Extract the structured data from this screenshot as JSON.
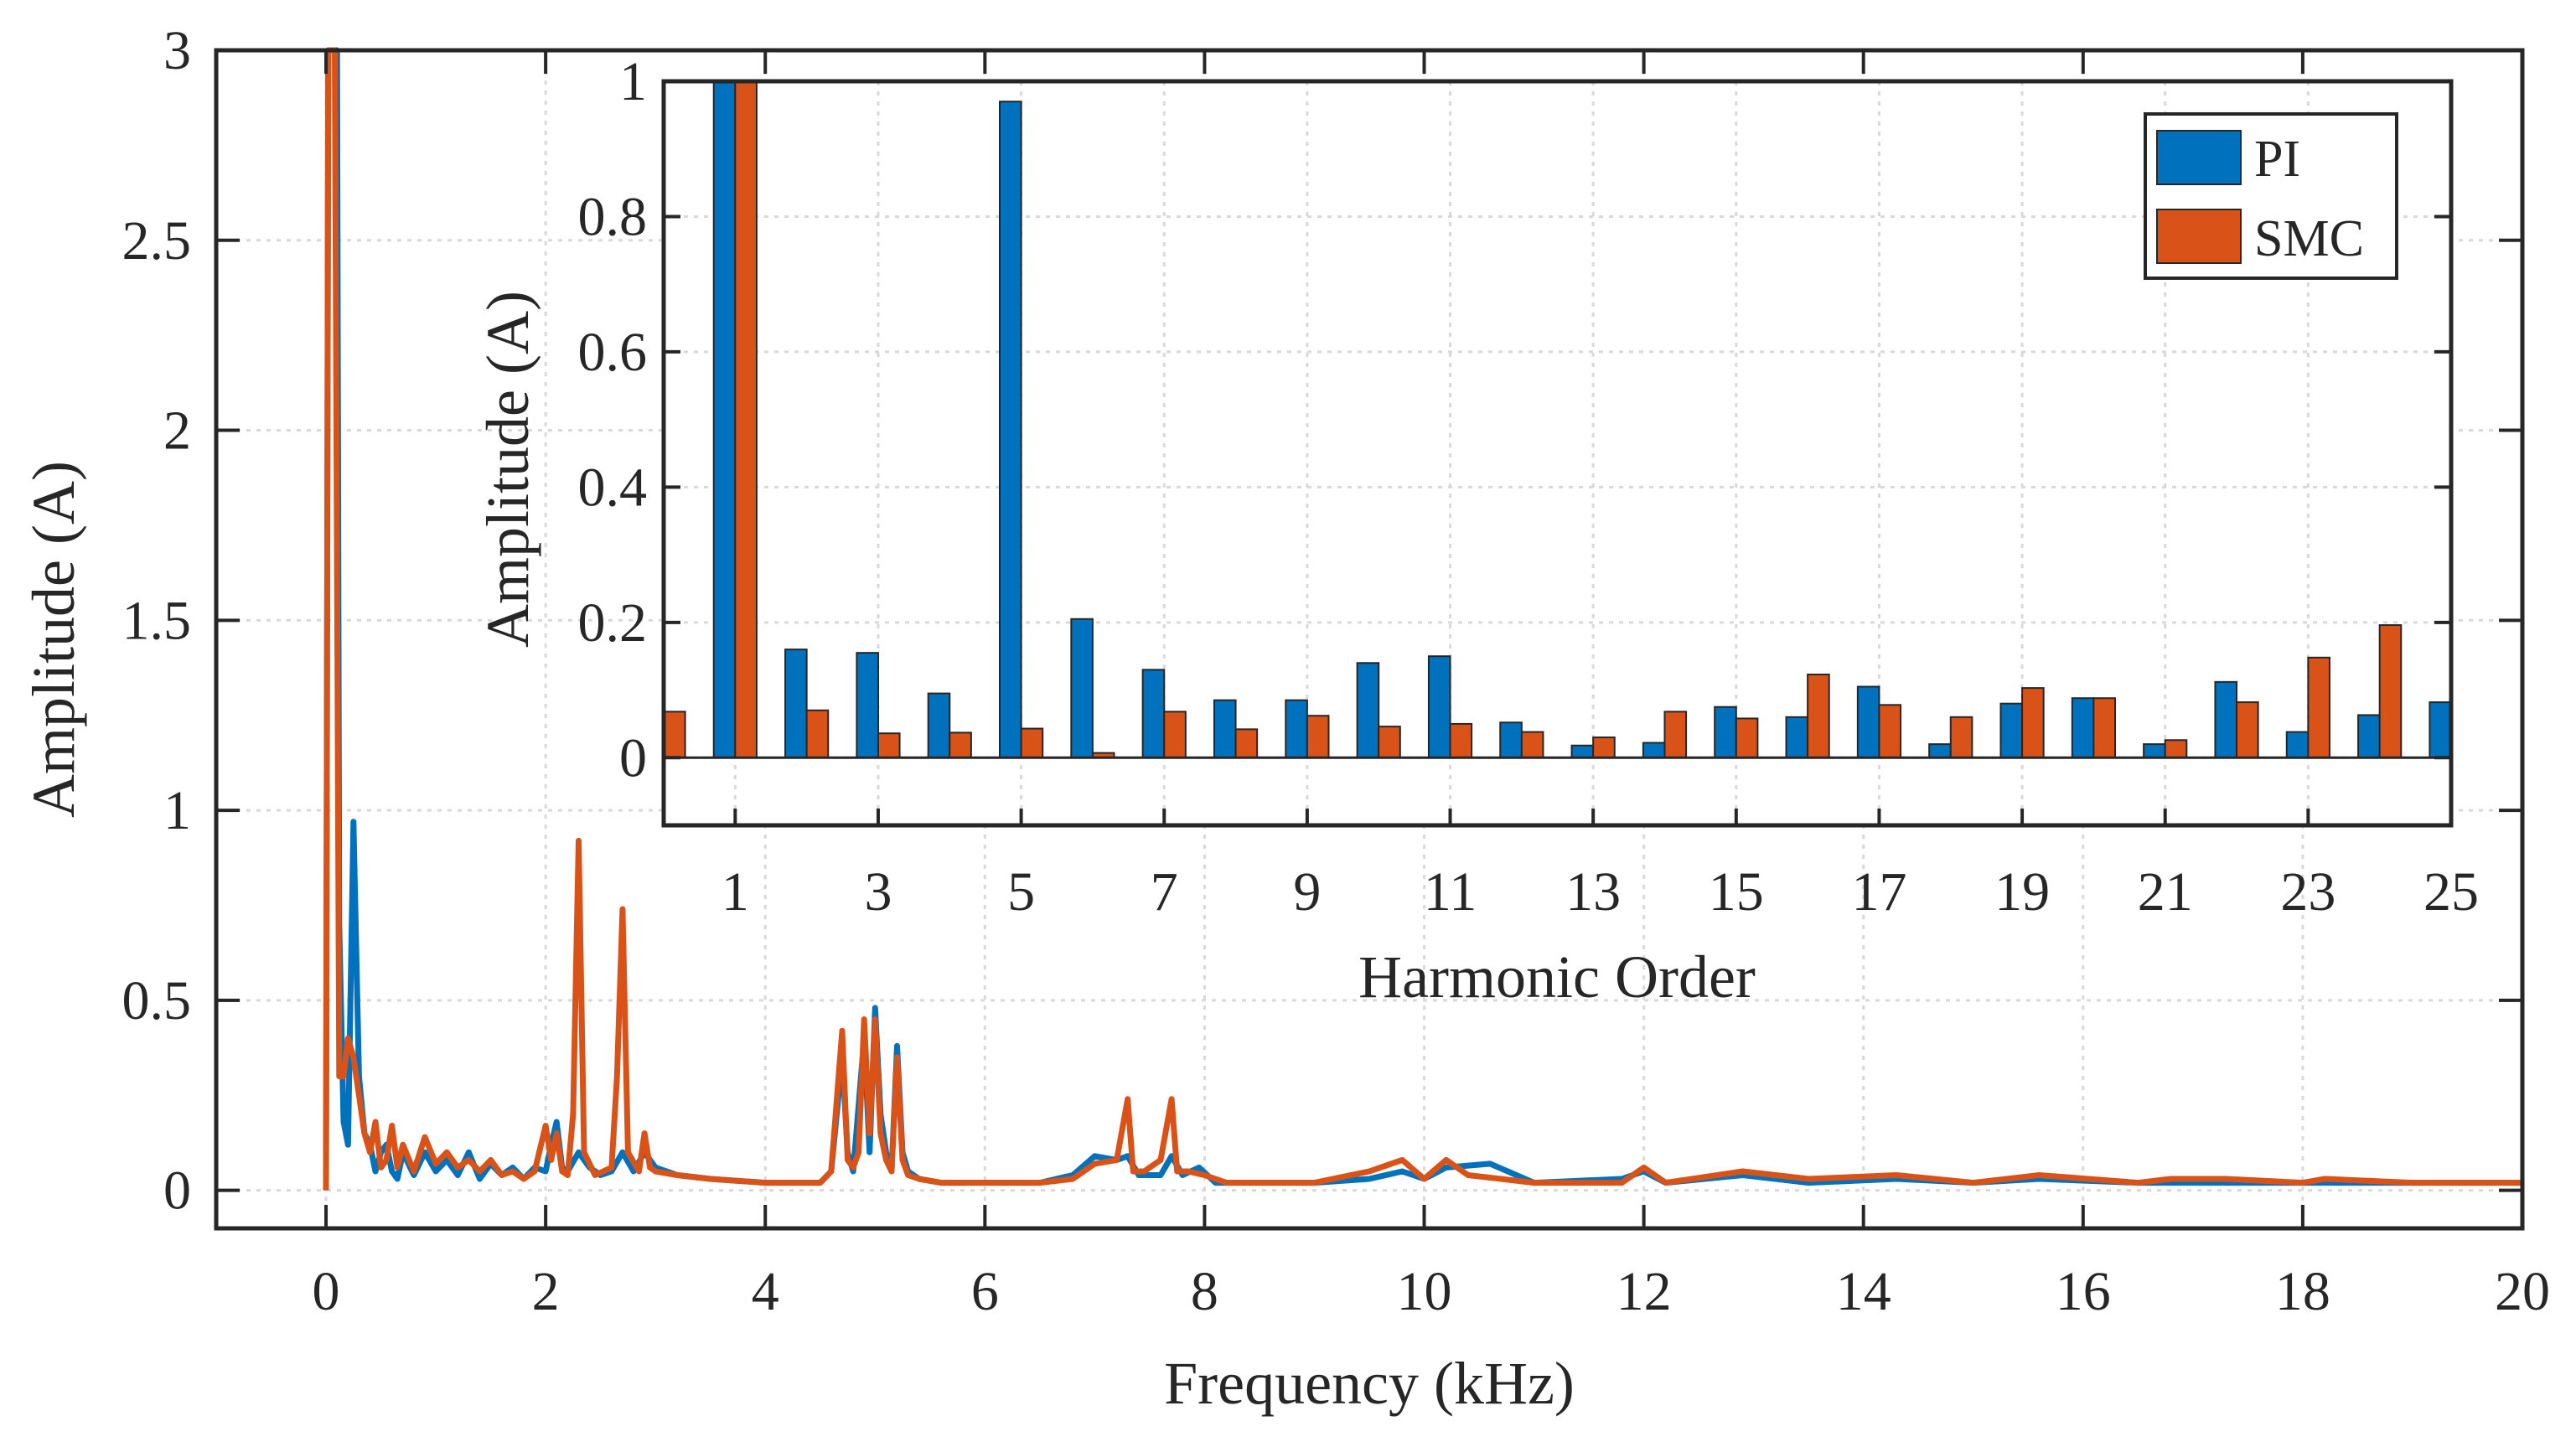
{
  "colors": {
    "pi": "#0072BD",
    "smc": "#D95319",
    "axis": "#262626",
    "grid": "#d9d9d9"
  },
  "chart_data": [
    {
      "id": "main",
      "type": "line",
      "title": "",
      "xlabel": "Frequency (kHz)",
      "ylabel": "Amplitude (A)",
      "xlim": [
        -1,
        20
      ],
      "ylim": [
        -0.1,
        3
      ],
      "xticks": [
        0,
        2,
        4,
        6,
        8,
        10,
        12,
        14,
        16,
        18,
        20
      ],
      "yticks": [
        0,
        0.5,
        1,
        1.5,
        2,
        2.5,
        3
      ],
      "xtick_labels": [
        "0",
        "2",
        "4",
        "6",
        "8",
        "10",
        "12",
        "14",
        "16",
        "18",
        "20"
      ],
      "ytick_labels": [
        "0",
        "0.5",
        "1",
        "1.5",
        "2",
        "2.5",
        "3"
      ],
      "grid": true,
      "series": [
        {
          "name": "PI",
          "x": [
            0,
            0.02,
            0.05,
            0.08,
            0.1,
            0.12,
            0.16,
            0.2,
            0.25,
            0.3,
            0.35,
            0.4,
            0.45,
            0.5,
            0.55,
            0.6,
            0.65,
            0.7,
            0.8,
            0.9,
            1.0,
            1.1,
            1.2,
            1.3,
            1.4,
            1.5,
            1.6,
            1.7,
            1.8,
            1.9,
            2.0,
            2.05,
            2.1,
            2.15,
            2.2,
            2.3,
            2.4,
            2.5,
            2.6,
            2.7,
            2.8,
            2.9,
            3.0,
            3.2,
            3.5,
            4.0,
            4.5,
            4.6,
            4.7,
            4.75,
            4.8,
            4.9,
            4.95,
            5.0,
            5.05,
            5.1,
            5.15,
            5.2,
            5.25,
            5.3,
            5.4,
            5.6,
            6.0,
            6.5,
            6.8,
            7.0,
            7.2,
            7.3,
            7.4,
            7.6,
            7.7,
            7.8,
            7.95,
            8.1,
            9.0,
            9.5,
            9.8,
            10.0,
            10.2,
            10.6,
            11.0,
            11.8,
            12.0,
            12.2,
            12.9,
            13.5,
            14.3,
            15.0,
            15.6,
            16.5,
            17.0,
            17.3,
            18.0,
            19.0,
            20.0
          ],
          "y": [
            0,
            3.0,
            3.0,
            3.0,
            3.0,
            0.7,
            0.18,
            0.12,
            0.97,
            0.3,
            0.15,
            0.12,
            0.05,
            0.1,
            0.12,
            0.05,
            0.03,
            0.1,
            0.04,
            0.1,
            0.05,
            0.08,
            0.04,
            0.1,
            0.03,
            0.07,
            0.04,
            0.06,
            0.03,
            0.06,
            0.05,
            0.12,
            0.18,
            0.06,
            0.05,
            0.1,
            0.06,
            0.04,
            0.05,
            0.1,
            0.05,
            0.1,
            0.06,
            0.04,
            0.03,
            0.02,
            0.02,
            0.05,
            0.35,
            0.1,
            0.05,
            0.4,
            0.1,
            0.48,
            0.2,
            0.1,
            0.05,
            0.38,
            0.1,
            0.05,
            0.03,
            0.02,
            0.02,
            0.02,
            0.04,
            0.09,
            0.08,
            0.09,
            0.04,
            0.04,
            0.09,
            0.04,
            0.06,
            0.02,
            0.02,
            0.03,
            0.05,
            0.03,
            0.06,
            0.07,
            0.02,
            0.03,
            0.05,
            0.02,
            0.04,
            0.02,
            0.03,
            0.02,
            0.03,
            0.02,
            0.02,
            0.02,
            0.02,
            0.02,
            0.02
          ]
        },
        {
          "name": "SMC",
          "x": [
            0,
            0.02,
            0.05,
            0.08,
            0.12,
            0.16,
            0.2,
            0.25,
            0.3,
            0.35,
            0.4,
            0.45,
            0.5,
            0.55,
            0.6,
            0.65,
            0.7,
            0.8,
            0.9,
            1.0,
            1.1,
            1.2,
            1.3,
            1.4,
            1.5,
            1.6,
            1.7,
            1.8,
            1.9,
            2.0,
            2.05,
            2.1,
            2.15,
            2.2,
            2.25,
            2.3,
            2.35,
            2.45,
            2.6,
            2.65,
            2.7,
            2.75,
            2.85,
            2.9,
            2.95,
            3.0,
            3.2,
            3.5,
            4.0,
            4.5,
            4.6,
            4.7,
            4.75,
            4.8,
            4.85,
            4.9,
            4.95,
            5.0,
            5.05,
            5.1,
            5.15,
            5.2,
            5.25,
            5.3,
            5.4,
            5.6,
            6.0,
            6.5,
            6.8,
            7.0,
            7.2,
            7.3,
            7.35,
            7.45,
            7.6,
            7.7,
            7.75,
            7.85,
            8.0,
            8.2,
            9.0,
            9.5,
            9.8,
            10.0,
            10.2,
            10.4,
            11.0,
            11.8,
            12.0,
            12.2,
            12.9,
            13.5,
            14.3,
            15.0,
            15.6,
            16.5,
            16.8,
            17.3,
            18.0,
            18.2,
            19.0,
            20.0
          ],
          "y": [
            0,
            3.0,
            3.0,
            3.0,
            0.3,
            0.3,
            0.4,
            0.35,
            0.25,
            0.15,
            0.1,
            0.18,
            0.06,
            0.08,
            0.17,
            0.06,
            0.12,
            0.05,
            0.14,
            0.07,
            0.1,
            0.06,
            0.08,
            0.05,
            0.08,
            0.04,
            0.05,
            0.03,
            0.05,
            0.17,
            0.08,
            0.15,
            0.05,
            0.04,
            0.2,
            0.92,
            0.1,
            0.04,
            0.06,
            0.3,
            0.74,
            0.1,
            0.05,
            0.15,
            0.06,
            0.05,
            0.04,
            0.03,
            0.02,
            0.02,
            0.05,
            0.42,
            0.08,
            0.06,
            0.1,
            0.45,
            0.15,
            0.45,
            0.15,
            0.08,
            0.05,
            0.35,
            0.08,
            0.04,
            0.03,
            0.02,
            0.02,
            0.02,
            0.03,
            0.07,
            0.08,
            0.24,
            0.05,
            0.05,
            0.08,
            0.24,
            0.05,
            0.05,
            0.04,
            0.02,
            0.02,
            0.05,
            0.08,
            0.03,
            0.08,
            0.04,
            0.02,
            0.02,
            0.06,
            0.02,
            0.05,
            0.03,
            0.04,
            0.02,
            0.04,
            0.02,
            0.03,
            0.03,
            0.02,
            0.03,
            0.02,
            0.02
          ]
        }
      ]
    },
    {
      "id": "inset",
      "type": "bar",
      "title": "",
      "xlabel": "Harmonic Order",
      "ylabel": "Amplitude (A)",
      "xlim": [
        0,
        25
      ],
      "ylim": [
        -0.1,
        1
      ],
      "yticks": [
        0,
        0.2,
        0.4,
        0.6,
        0.8,
        1
      ],
      "ytick_labels": [
        "0",
        "0.2",
        "0.4",
        "0.6",
        "0.8",
        "1"
      ],
      "xticks": [
        1,
        3,
        5,
        7,
        9,
        11,
        13,
        15,
        17,
        19,
        21,
        23,
        25
      ],
      "xtick_labels": [
        "1",
        "3",
        "5",
        "7",
        "9",
        "11",
        "13",
        "15",
        "17",
        "19",
        "21",
        "23",
        "25"
      ],
      "grid": true,
      "legend": {
        "position": "top-right",
        "entries": [
          "PI",
          "SMC"
        ]
      },
      "categories": [
        0,
        1,
        2,
        3,
        4,
        5,
        6,
        7,
        8,
        9,
        10,
        11,
        12,
        13,
        14,
        15,
        16,
        17,
        18,
        19,
        20,
        21,
        22,
        23,
        24,
        25
      ],
      "series": [
        {
          "name": "PI",
          "values": [
            0,
            1.0,
            0.16,
            0.155,
            0.095,
            0.97,
            0.205,
            0.13,
            0.085,
            0.085,
            0.14,
            0.15,
            0.052,
            0.018,
            0.022,
            0.075,
            0.06,
            0.105,
            0.02,
            0.08,
            0.088,
            0.02,
            0.112,
            0.038,
            0.063,
            0.082
          ]
        },
        {
          "name": "SMC",
          "values": [
            0.068,
            1.0,
            0.07,
            0.036,
            0.037,
            0.043,
            0.007,
            0.068,
            0.042,
            0.062,
            0.046,
            0.05,
            0.038,
            0.03,
            0.068,
            0.058,
            0.123,
            0.078,
            0.06,
            0.103,
            0.088,
            0.026,
            0.082,
            0.148,
            0.196,
            0
          ]
        }
      ]
    }
  ]
}
